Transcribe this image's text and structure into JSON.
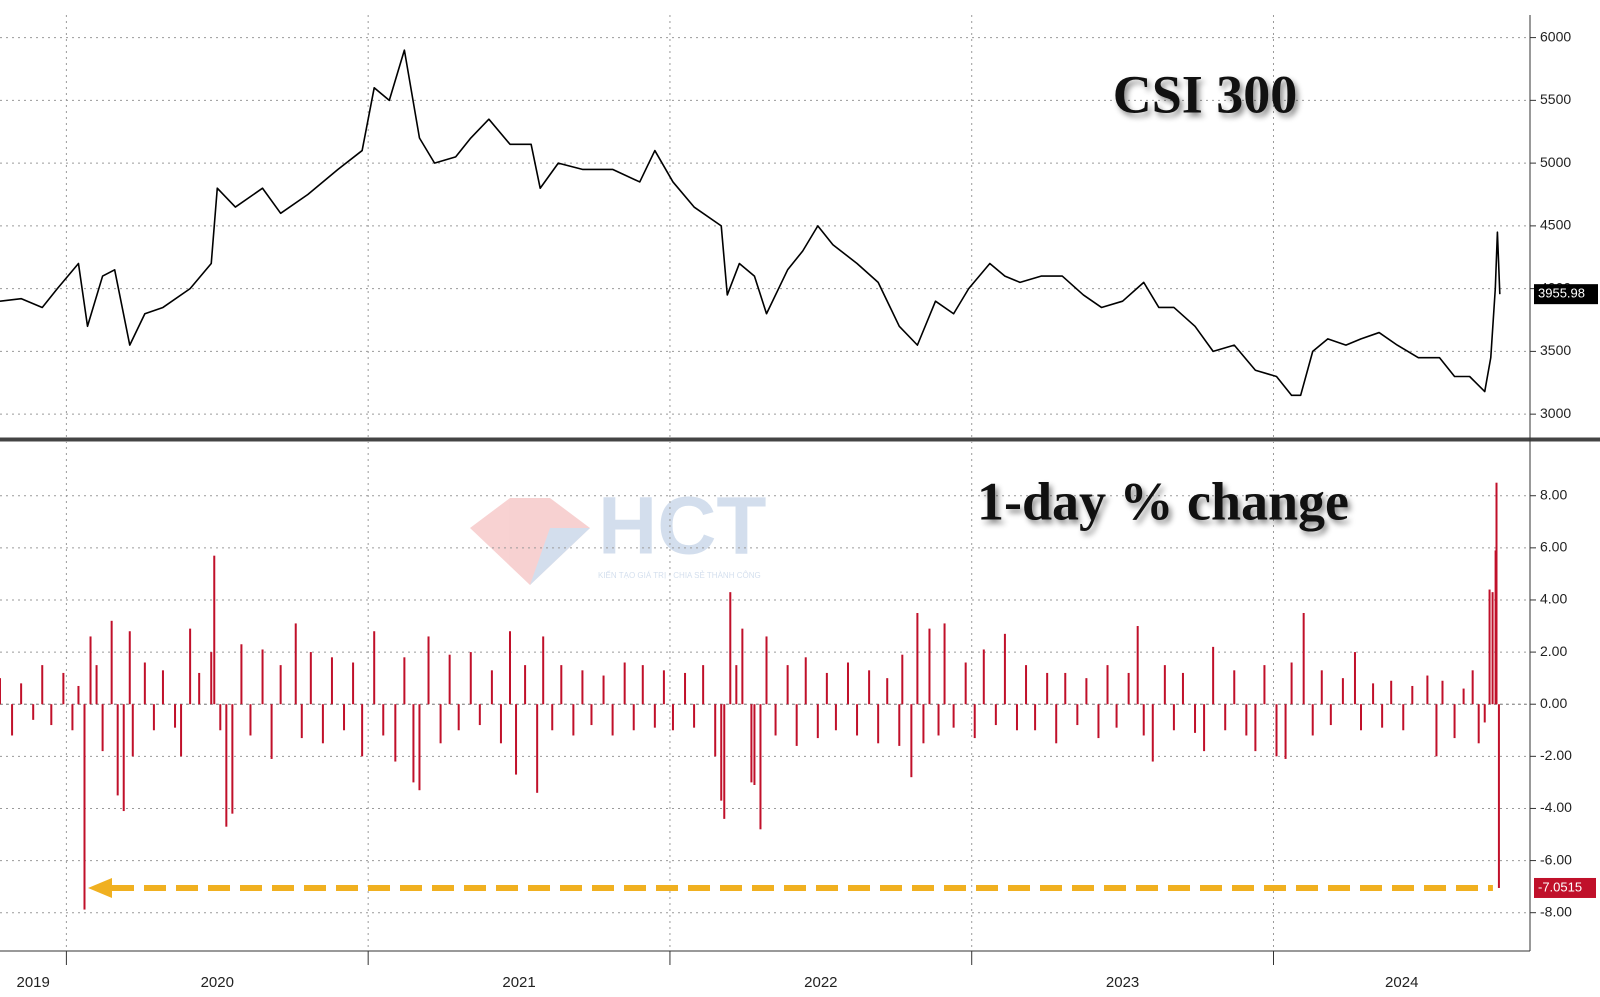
{
  "chart_data": [
    {
      "type": "line",
      "title": "CSI 300",
      "x": [
        2019.78,
        2019.85,
        2019.92,
        2019.97,
        2020.04,
        2020.07,
        2020.12,
        2020.16,
        2020.21,
        2020.26,
        2020.32,
        2020.41,
        2020.48,
        2020.5,
        2020.56,
        2020.65,
        2020.71,
        2020.8,
        2020.9,
        2020.98,
        2021.02,
        2021.07,
        2021.12,
        2021.17,
        2021.22,
        2021.29,
        2021.34,
        2021.4,
        2021.47,
        2021.54,
        2021.57,
        2021.63,
        2021.71,
        2021.81,
        2021.9,
        2021.95,
        2022.01,
        2022.08,
        2022.17,
        2022.19,
        2022.23,
        2022.28,
        2022.32,
        2022.39,
        2022.44,
        2022.49,
        2022.54,
        2022.62,
        2022.69,
        2022.76,
        2022.82,
        2022.88,
        2022.94,
        2022.99,
        2023.06,
        2023.11,
        2023.16,
        2023.23,
        2023.3,
        2023.37,
        2023.43,
        2023.5,
        2023.57,
        2023.62,
        2023.67,
        2023.74,
        2023.8,
        2023.87,
        2023.94,
        2024.01,
        2024.06,
        2024.09,
        2024.13,
        2024.18,
        2024.24,
        2024.29,
        2024.35,
        2024.41,
        2024.48,
        2024.55,
        2024.6,
        2024.65,
        2024.7,
        2024.72,
        2024.735,
        2024.742,
        2024.75
      ],
      "series": [
        {
          "name": "CSI 300",
          "color": "#000000",
          "values": [
            3900,
            3920,
            3850,
            4000,
            4200,
            3700,
            4100,
            4150,
            3550,
            3800,
            3850,
            4000,
            4200,
            4800,
            4650,
            4800,
            4600,
            4750,
            4950,
            5100,
            5600,
            5500,
            5900,
            5200,
            5000,
            5050,
            5200,
            5350,
            5150,
            5150,
            4800,
            5000,
            4950,
            4950,
            4850,
            5100,
            4850,
            4650,
            4500,
            3950,
            4200,
            4100,
            3800,
            4150,
            4300,
            4500,
            4350,
            4200,
            4050,
            3700,
            3550,
            3900,
            3800,
            4000,
            4200,
            4100,
            4050,
            4100,
            4100,
            3950,
            3850,
            3900,
            4050,
            3850,
            3850,
            3700,
            3500,
            3550,
            3350,
            3300,
            3150,
            3150,
            3500,
            3600,
            3550,
            3600,
            3650,
            3550,
            3450,
            3450,
            3300,
            3300,
            3180,
            3450,
            4000,
            4450,
            3955.98
          ]
        }
      ],
      "xlim": [
        2019.78,
        2024.85
      ],
      "xticks": [
        2020,
        2021,
        2022,
        2023,
        2024
      ],
      "ylim": [
        2810,
        6180
      ],
      "yticks": [
        3000,
        3500,
        4000,
        4500,
        5000,
        5500,
        6000
      ],
      "grid": true
    },
    {
      "type": "bar",
      "title": "1-day % change",
      "x": [
        2019.78,
        2019.82,
        2019.85,
        2019.89,
        2019.92,
        2019.95,
        2019.99,
        2020.02,
        2020.04,
        2020.06,
        2020.08,
        2020.1,
        2020.12,
        2020.15,
        2020.17,
        2020.19,
        2020.21,
        2020.22,
        2020.26,
        2020.29,
        2020.32,
        2020.36,
        2020.38,
        2020.41,
        2020.44,
        2020.48,
        2020.49,
        2020.51,
        2020.53,
        2020.55,
        2020.58,
        2020.61,
        2020.65,
        2020.68,
        2020.71,
        2020.76,
        2020.78,
        2020.81,
        2020.85,
        2020.88,
        2020.92,
        2020.95,
        2020.98,
        2021.02,
        2021.05,
        2021.09,
        2021.12,
        2021.15,
        2021.17,
        2021.2,
        2021.24,
        2021.27,
        2021.3,
        2021.34,
        2021.37,
        2021.41,
        2021.44,
        2021.47,
        2021.49,
        2021.52,
        2021.56,
        2021.58,
        2021.61,
        2021.64,
        2021.68,
        2021.71,
        2021.74,
        2021.78,
        2021.81,
        2021.85,
        2021.88,
        2021.91,
        2021.95,
        2021.98,
        2022.01,
        2022.05,
        2022.08,
        2022.11,
        2022.15,
        2022.17,
        2022.18,
        2022.2,
        2022.22,
        2022.24,
        2022.27,
        2022.28,
        2022.3,
        2022.32,
        2022.35,
        2022.39,
        2022.42,
        2022.45,
        2022.49,
        2022.52,
        2022.55,
        2022.59,
        2022.62,
        2022.66,
        2022.69,
        2022.72,
        2022.76,
        2022.77,
        2022.8,
        2022.82,
        2022.84,
        2022.86,
        2022.89,
        2022.91,
        2022.94,
        2022.98,
        2023.01,
        2023.04,
        2023.08,
        2023.11,
        2023.15,
        2023.18,
        2023.21,
        2023.25,
        2023.28,
        2023.31,
        2023.35,
        2023.38,
        2023.42,
        2023.45,
        2023.48,
        2023.52,
        2023.55,
        2023.57,
        2023.6,
        2023.64,
        2023.67,
        2023.7,
        2023.74,
        2023.77,
        2023.8,
        2023.84,
        2023.87,
        2023.91,
        2023.94,
        2023.97,
        2024.01,
        2024.04,
        2024.06,
        2024.1,
        2024.13,
        2024.16,
        2024.19,
        2024.23,
        2024.27,
        2024.29,
        2024.33,
        2024.36,
        2024.39,
        2024.43,
        2024.46,
        2024.51,
        2024.54,
        2024.56,
        2024.6,
        2024.63,
        2024.66,
        2024.68,
        2024.7,
        2024.716,
        2024.726,
        2024.736,
        2024.739,
        2024.747
      ],
      "values": [
        1.0,
        -1.2,
        0.8,
        -0.6,
        1.5,
        -0.8,
        1.2,
        -1.0,
        0.7,
        -7.88,
        2.6,
        1.5,
        -1.8,
        3.2,
        -3.5,
        -4.1,
        2.8,
        -2.0,
        1.6,
        -1.0,
        1.3,
        -0.9,
        -2.0,
        2.9,
        1.2,
        2.0,
        5.7,
        -1.0,
        -4.7,
        -4.2,
        2.3,
        -1.2,
        2.1,
        -2.1,
        1.5,
        3.1,
        -1.3,
        2.0,
        -1.5,
        1.8,
        -1.0,
        1.6,
        -2.0,
        2.8,
        -1.2,
        -2.2,
        1.8,
        -3.0,
        -3.3,
        2.6,
        -1.5,
        1.9,
        -1.0,
        2.0,
        -0.8,
        1.3,
        -1.5,
        2.8,
        -2.7,
        1.5,
        -3.4,
        2.6,
        -1.0,
        1.5,
        -1.2,
        1.3,
        -0.8,
        1.1,
        -1.2,
        1.6,
        -1.0,
        1.5,
        -0.9,
        1.3,
        -1.0,
        1.2,
        -0.9,
        1.5,
        -2.0,
        -3.7,
        -4.4,
        4.3,
        1.5,
        2.9,
        -3.0,
        -3.1,
        -4.8,
        2.6,
        -1.2,
        1.5,
        -1.6,
        1.8,
        -1.3,
        1.2,
        -1.0,
        1.6,
        -1.2,
        1.3,
        -1.5,
        1.0,
        -1.6,
        1.9,
        -2.8,
        3.5,
        -1.5,
        2.9,
        -1.2,
        3.1,
        -0.9,
        1.6,
        -1.3,
        2.1,
        -0.8,
        2.7,
        -1.0,
        1.5,
        -1.0,
        1.2,
        -1.5,
        1.2,
        -0.8,
        1.0,
        -1.3,
        1.5,
        -0.9,
        1.2,
        3.0,
        -1.2,
        -2.2,
        1.5,
        -1.0,
        1.2,
        -1.1,
        -1.8,
        2.2,
        -1.0,
        1.3,
        -1.2,
        -1.8,
        1.5,
        -2.0,
        -2.1,
        1.6,
        3.5,
        -1.2,
        1.3,
        -0.8,
        1.0,
        2.0,
        -1.0,
        0.8,
        -0.9,
        0.9,
        -1.0,
        0.7,
        1.1,
        -2.0,
        0.9,
        -1.3,
        0.6,
        1.3,
        -1.5,
        -0.7,
        4.4,
        4.3,
        5.9,
        8.5,
        -7.0515
      ],
      "color": "#c0102a",
      "xlim": [
        2019.78,
        2024.85
      ],
      "xticks": [
        2019,
        2020,
        2021,
        2022,
        2023,
        2024
      ],
      "ylim": [
        -9.47,
        10.1
      ],
      "yticks": [
        {
          "value": -8,
          "label": "-8.00"
        },
        {
          "value": -6,
          "label": "-6.00"
        },
        {
          "value": -4,
          "label": "-4.00"
        },
        {
          "value": -2,
          "label": "-2.00"
        },
        {
          "value": 0,
          "label": "0.00"
        },
        {
          "value": 2,
          "label": "2.00"
        },
        {
          "value": 4,
          "label": "4.00"
        },
        {
          "value": 6,
          "label": "6.00"
        },
        {
          "value": 8,
          "label": "8.00"
        }
      ],
      "grid": true,
      "annotation_color": "#f0b020"
    }
  ],
  "watermark": {
    "text": "HCT",
    "tagline": "KIẾN TẠO GIÁ TRỊ - CHIA SẺ THÀNH CÔNG"
  }
}
